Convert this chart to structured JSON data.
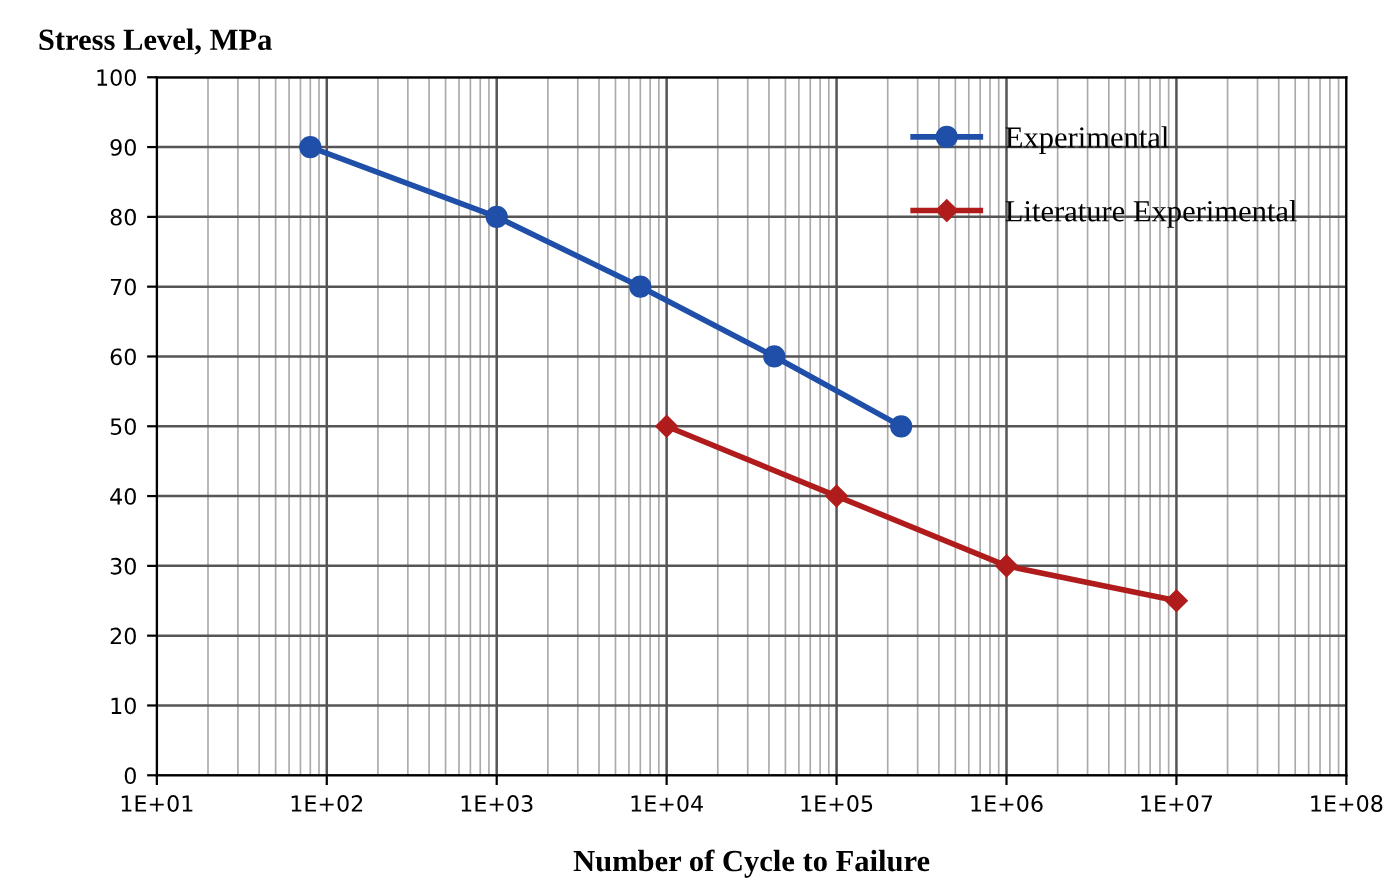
{
  "chart_data": {
    "type": "line",
    "ylabel": "Stress Level, MPa",
    "xlabel": "Number of Cycle to Failure",
    "log": "x",
    "xlim": [
      10,
      100000000
    ],
    "xticks": [
      {
        "value": 10,
        "label": "1E+01"
      },
      {
        "value": 100,
        "label": "1E+02"
      },
      {
        "value": 1000,
        "label": "1E+03"
      },
      {
        "value": 10000,
        "label": "1E+04"
      },
      {
        "value": 100000,
        "label": "1E+05"
      },
      {
        "value": 1000000,
        "label": "1E+06"
      },
      {
        "value": 10000000,
        "label": "1E+07"
      },
      {
        "value": 100000000,
        "label": "1E+08"
      }
    ],
    "ylim": [
      0,
      100
    ],
    "yticks": [
      0,
      10,
      20,
      30,
      40,
      50,
      60,
      70,
      80,
      90,
      100
    ],
    "grid": true,
    "legend": "top right",
    "series": [
      {
        "name": "Experimental",
        "color": "#1f4fa8",
        "marker": "circle",
        "x": [
          80,
          1000,
          7000,
          43000,
          240000
        ],
        "values": [
          90,
          80,
          70,
          60,
          50
        ]
      },
      {
        "name": "Literature Experimental",
        "color": "#b01c1c",
        "marker": "diamond",
        "x": [
          10000,
          100000,
          1000000,
          10000000
        ],
        "values": [
          50,
          40,
          30,
          25
        ]
      }
    ]
  }
}
